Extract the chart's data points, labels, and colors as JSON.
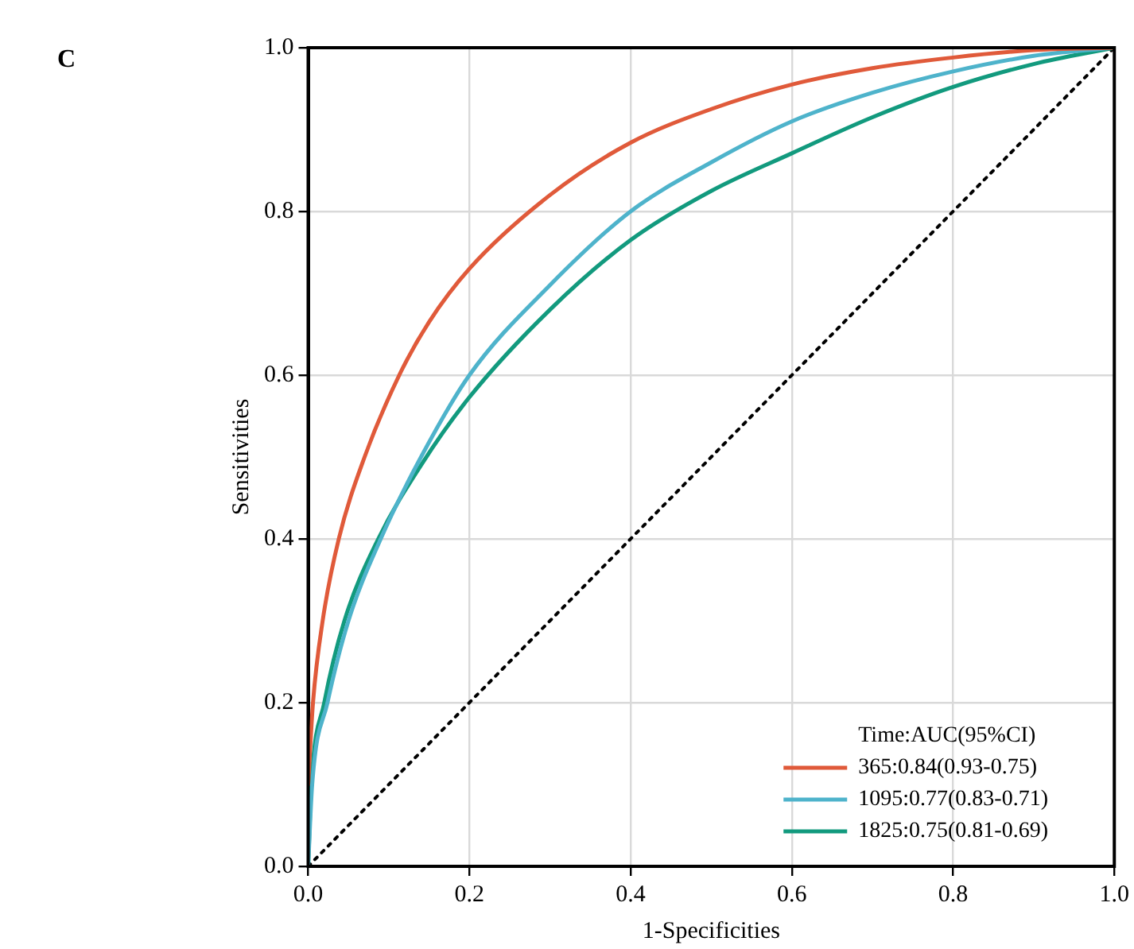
{
  "chart_data": {
    "type": "line",
    "xlabel": "1-Specificities",
    "ylabel": "Sensitivities",
    "legend_title": "Time:AUC(95%CI)",
    "annotations": [
      "C"
    ],
    "xlim": [
      0,
      1
    ],
    "ylim": [
      0,
      1
    ],
    "xticks": [
      {
        "value": 0,
        "label": "0.0"
      },
      0.2,
      0.4,
      0.6,
      0.8,
      {
        "value": 1,
        "label": "1.0"
      }
    ],
    "yticks": [
      {
        "value": 0,
        "label": "0.0"
      },
      0.2,
      0.4,
      0.6,
      0.8,
      {
        "value": 1,
        "label": "1.0"
      }
    ],
    "grid": true,
    "legend": "bottom right",
    "marker": "none",
    "series": [
      {
        "name": "365:0.84(0.93-0.75)",
        "color": "#e05a3a",
        "x": [
          0,
          0.006,
          0.018,
          0.038,
          0.07,
          0.113,
          0.15,
          0.2,
          0.3,
          0.4,
          0.5,
          0.6,
          0.7,
          0.8,
          0.9,
          1
        ],
        "values": [
          0.1,
          0.2,
          0.3,
          0.4,
          0.5,
          0.6,
          0.665,
          0.73,
          0.82,
          0.884,
          0.925,
          0.955,
          0.975,
          0.988,
          0.997,
          1
        ]
      },
      {
        "name": "1095:0.77(0.83-0.71)",
        "color": "#4eb3cb",
        "x": [
          0,
          0.005,
          0.024,
          0.05,
          0.09,
          0.14,
          0.2,
          0.3,
          0.4,
          0.5,
          0.6,
          0.7,
          0.8,
          0.9,
          1
        ],
        "values": [
          0,
          0.1,
          0.2,
          0.3,
          0.4,
          0.5,
          0.6,
          0.71,
          0.8,
          0.86,
          0.91,
          0.945,
          0.971,
          0.99,
          1
        ]
      },
      {
        "name": "1825:0.75(0.81-0.69)",
        "color": "#129a7e",
        "x": [
          0,
          0.004,
          0.02,
          0.045,
          0.087,
          0.14,
          0.2,
          0.3,
          0.4,
          0.5,
          0.6,
          0.7,
          0.8,
          0.9,
          1
        ],
        "values": [
          0,
          0.1,
          0.2,
          0.3,
          0.4,
          0.49,
          0.573,
          0.68,
          0.765,
          0.825,
          0.871,
          0.915,
          0.952,
          0.98,
          1
        ]
      },
      {
        "color": "#000000",
        "line_style": "dotted",
        "x": [
          0,
          1
        ],
        "values": [
          0,
          1
        ]
      }
    ]
  }
}
